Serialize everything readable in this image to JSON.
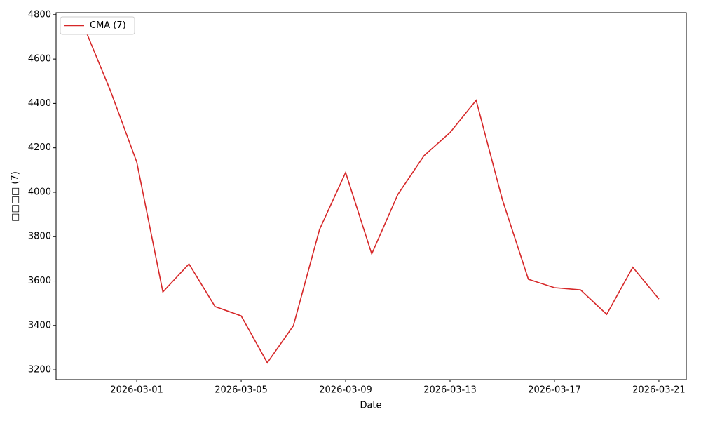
{
  "chart_data": {
    "type": "line",
    "xlabel": "Date",
    "ylabel": "□□□□ (7)",
    "x": [
      "2026-02-27",
      "2026-02-28",
      "2026-03-01",
      "2026-03-02",
      "2026-03-03",
      "2026-03-04",
      "2026-03-05",
      "2026-03-06",
      "2026-03-07",
      "2026-03-08",
      "2026-03-09",
      "2026-03-10",
      "2026-03-11",
      "2026-03-12",
      "2026-03-13",
      "2026-03-14",
      "2026-03-15",
      "2026-03-16",
      "2026-03-17",
      "2026-03-18",
      "2026-03-19",
      "2026-03-20",
      "2026-03-21"
    ],
    "series": [
      {
        "name": "CMA (7)",
        "color": "#d62728",
        "values": [
          4740,
          4455,
          4136,
          3551,
          3677,
          3485,
          3443,
          3232,
          3399,
          3832,
          4089,
          3722,
          3990,
          4164,
          4269,
          4414,
          3968,
          3608,
          3570,
          3560,
          3450,
          3662,
          3519
        ]
      }
    ],
    "xlim": [
      "2026-02-25T21:50",
      "2026-03-22T01:10"
    ],
    "xticks": [
      "2026-03-01",
      "2026-03-05",
      "2026-03-09",
      "2026-03-13",
      "2026-03-17",
      "2026-03-21"
    ],
    "ylim": [
      3156,
      4809
    ],
    "yticks": [
      3200,
      3400,
      3600,
      3800,
      4000,
      4200,
      4400,
      4600,
      4800
    ],
    "legend": "upper-left"
  }
}
